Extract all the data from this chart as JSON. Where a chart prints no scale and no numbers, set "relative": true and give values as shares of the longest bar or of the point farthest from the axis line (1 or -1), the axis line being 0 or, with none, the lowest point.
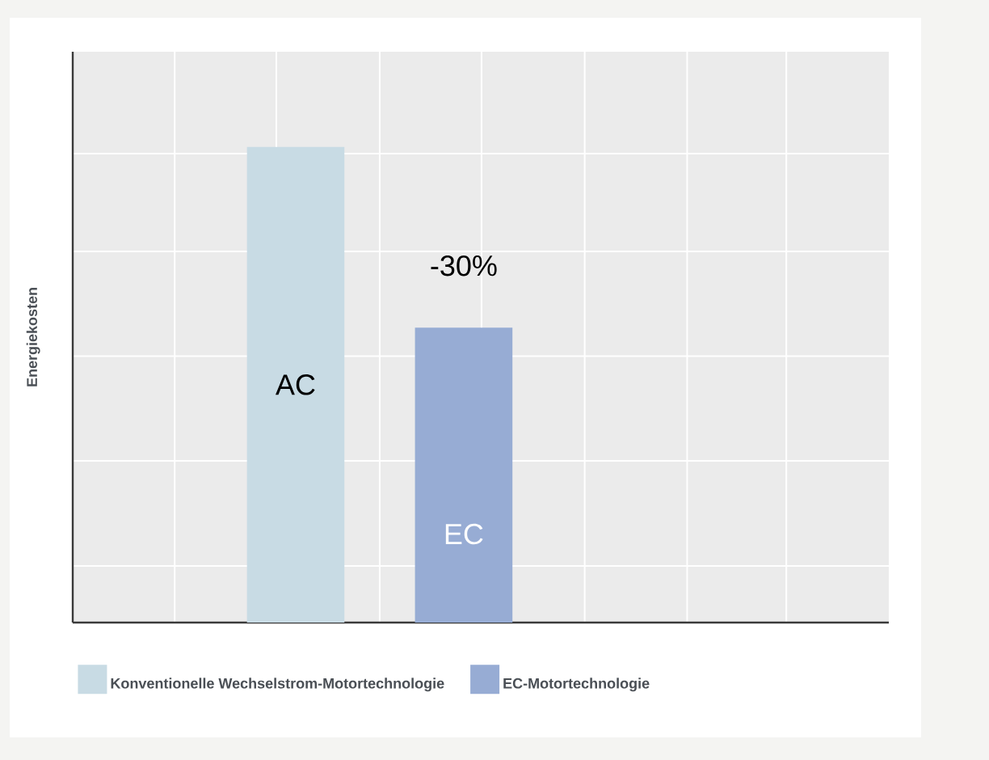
{
  "chart_data": {
    "type": "bar",
    "relative": true,
    "ylabel": "Energiekosten",
    "categories": [
      "Konventionelle Wechselstrom-Motortechnologie",
      "EC-Motortechnologie"
    ],
    "values": [
      1,
      0.62
    ],
    "colors": [
      "#c8dbe4",
      "#97acd4"
    ],
    "annotations": [
      "AC",
      "-30%",
      "EC"
    ],
    "grid": true,
    "tick_labels": false
  }
}
